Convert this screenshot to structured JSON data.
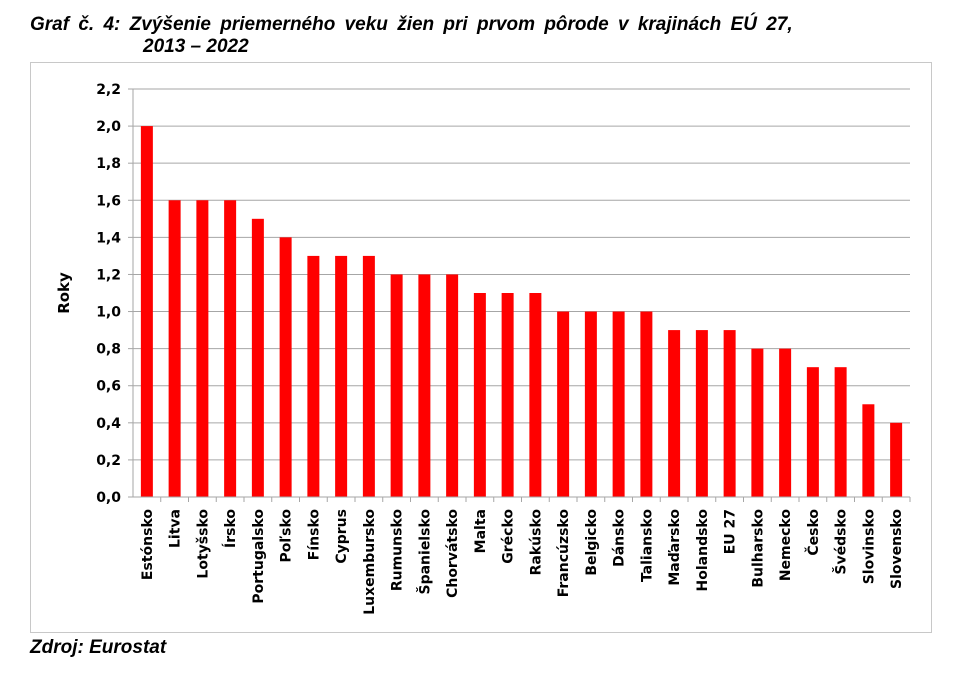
{
  "title_line1": "Graf č. 4: Zvýšenie priemerného veku žien pri prvom pôrode v krajinách EÚ 27,",
  "title_line2": "2013 – 2022",
  "source": "Zdroj: Eurostat",
  "chart_data": {
    "type": "bar",
    "title": "Graf č. 4: Zvýšenie priemerného veku žien pri prvom pôrode v krajinách EÚ 27, 2013 – 2022",
    "xlabel": "",
    "ylabel": "Roky",
    "ylim": [
      0,
      2.2
    ],
    "yticks": [
      "0,0",
      "0,2",
      "0,4",
      "0,6",
      "0,8",
      "1,0",
      "1,2",
      "1,4",
      "1,6",
      "1,8",
      "2,0",
      "2,2"
    ],
    "grid": true,
    "bar_color": "#ff0000",
    "categories": [
      "Estónsko",
      "Litva",
      "Lotyšsko",
      "Írsko",
      "Portugalsko",
      "Poľsko",
      "Fínsko",
      "Cyprus",
      "Luxembursko",
      "Rumunsko",
      "Španielsko",
      "Chorvátsko",
      "Malta",
      "Grécko",
      "Rakúsko",
      "Francúzsko",
      "Belgicko",
      "Dánsko",
      "Taliansko",
      "Maďarsko",
      "Holandsko",
      "EU 27",
      "Bulharsko",
      "Nemecko",
      "Česko",
      "Švédsko",
      "Slovinsko",
      "Slovensko"
    ],
    "values": [
      2.0,
      1.6,
      1.6,
      1.6,
      1.5,
      1.4,
      1.3,
      1.3,
      1.3,
      1.2,
      1.2,
      1.2,
      1.1,
      1.1,
      1.1,
      1.0,
      1.0,
      1.0,
      1.0,
      0.9,
      0.9,
      0.9,
      0.8,
      0.8,
      0.7,
      0.7,
      0.5,
      0.4
    ]
  }
}
